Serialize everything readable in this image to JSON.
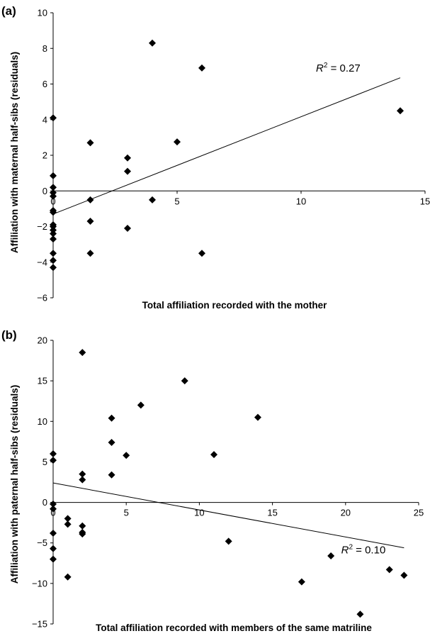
{
  "chart_data": [
    {
      "type": "scatter",
      "panel_label": "(a)",
      "xlabel": "Total affiliation recorded with the mother",
      "ylabel": "Affiliation with maternal half-sibs (residuals)",
      "xlim": [
        0,
        15
      ],
      "ylim": [
        -6,
        10
      ],
      "xticks": [
        "0",
        "5",
        "10",
        "15"
      ],
      "yticks": [
        "-6",
        "-4",
        "-2",
        "0",
        "2",
        "4",
        "6",
        "8",
        "10"
      ],
      "grid": false,
      "points": [
        [
          0,
          4.1
        ],
        [
          0,
          0.85
        ],
        [
          0,
          0.2
        ],
        [
          0,
          -0.1
        ],
        [
          0,
          -0.3
        ],
        [
          0,
          -1.1
        ],
        [
          0,
          -1.2
        ],
        [
          0,
          -1.9
        ],
        [
          0,
          -2.0
        ],
        [
          0,
          -2.2
        ],
        [
          0,
          -2.4
        ],
        [
          0,
          -2.7
        ],
        [
          0,
          -3.5
        ],
        [
          0,
          -3.9
        ],
        [
          0,
          -4.3
        ],
        [
          1.5,
          2.7
        ],
        [
          1.5,
          -0.5
        ],
        [
          1.5,
          -1.7
        ],
        [
          1.5,
          -3.5
        ],
        [
          3,
          1.85
        ],
        [
          3,
          1.1
        ],
        [
          3,
          -2.1
        ],
        [
          4,
          8.3
        ],
        [
          4,
          -0.5
        ],
        [
          5,
          2.75
        ],
        [
          6,
          6.9
        ],
        [
          6,
          -3.5
        ],
        [
          14,
          4.5
        ]
      ],
      "trendline": {
        "x": [
          0,
          14
        ],
        "y": [
          -1.3,
          6.35
        ]
      },
      "annotation": {
        "prefix": "R",
        "sup": "2",
        "suffix": " = 0.27",
        "x": 10.6,
        "y": 6.7
      }
    },
    {
      "type": "scatter",
      "panel_label": "(b)",
      "xlabel": "Total affiliation recorded with members of the same matriline",
      "ylabel": "Affiliation with paternal half-sibs (residuals)",
      "xlim": [
        0,
        25
      ],
      "ylim": [
        -15,
        20
      ],
      "xticks": [
        "0",
        "5",
        "10",
        "15",
        "20",
        "25"
      ],
      "yticks": [
        "-15",
        "-10",
        "-5",
        "0",
        "5",
        "10",
        "15",
        "20"
      ],
      "grid": false,
      "points": [
        [
          0,
          6.0
        ],
        [
          0,
          5.2
        ],
        [
          0,
          -0.2
        ],
        [
          0,
          -0.8
        ],
        [
          0,
          -3.8
        ],
        [
          0,
          -5.7
        ],
        [
          0,
          -7.0
        ],
        [
          1,
          -2.0
        ],
        [
          1,
          -2.7
        ],
        [
          1,
          -9.2
        ],
        [
          2,
          18.5
        ],
        [
          2,
          3.5
        ],
        [
          2,
          2.8
        ],
        [
          2,
          -2.9
        ],
        [
          2,
          -3.7
        ],
        [
          2,
          -3.9
        ],
        [
          4,
          10.4
        ],
        [
          4,
          7.4
        ],
        [
          4,
          3.4
        ],
        [
          5,
          5.8
        ],
        [
          6,
          12.0
        ],
        [
          9,
          15.0
        ],
        [
          11,
          5.9
        ],
        [
          12,
          -4.8
        ],
        [
          14,
          10.5
        ],
        [
          17,
          -9.8
        ],
        [
          19,
          -6.6
        ],
        [
          21,
          -13.8
        ],
        [
          23,
          -8.3
        ],
        [
          24,
          -9.0
        ]
      ],
      "trendline": {
        "x": [
          0,
          24
        ],
        "y": [
          2.4,
          -5.6
        ]
      },
      "annotation": {
        "prefix": "R",
        "sup": "2",
        "suffix": " = 0.10",
        "x": 19.7,
        "y": -6.3
      }
    }
  ]
}
